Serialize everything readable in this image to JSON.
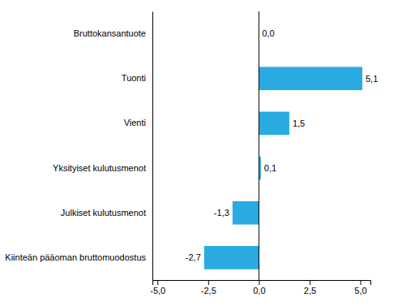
{
  "chart_data": {
    "type": "bar",
    "orientation": "horizontal",
    "categories": [
      "Kiinteän pääoman bruttomuodostus",
      "Julkiset kulutusmenot",
      "Yksityiset kulutusmenot",
      "Vienti",
      "Tuonti",
      "Bruttokansantuote"
    ],
    "values": [
      -2.7,
      -1.3,
      0.1,
      1.5,
      5.1,
      0.0
    ],
    "value_labels": [
      "-2,7",
      "-1,3",
      "0,1",
      "1,5",
      "5,1",
      "0,0"
    ],
    "data_labels": true,
    "color": "#29abe2",
    "xlim": [
      -5.25,
      5.5
    ],
    "xticks": [
      {
        "value": -5.0,
        "label": "-5,0"
      },
      {
        "value": -2.5,
        "label": "-2,5"
      },
      {
        "value": 0.0,
        "label": "0,0"
      },
      {
        "value": 2.5,
        "label": "2,5"
      },
      {
        "value": 5.0,
        "label": "5,0"
      }
    ],
    "grid": false
  }
}
